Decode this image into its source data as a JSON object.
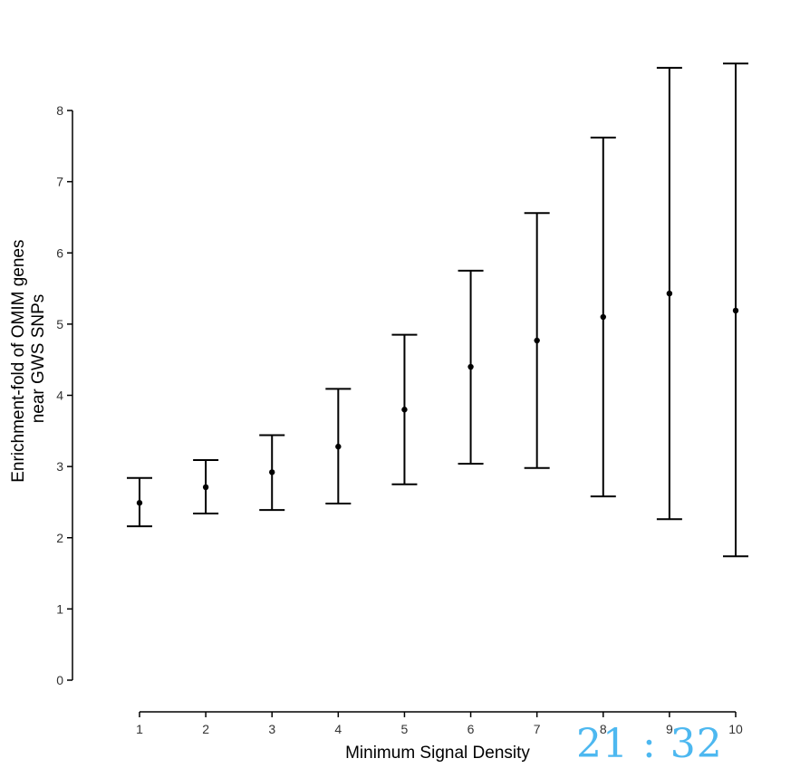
{
  "chart_data": {
    "type": "scatter",
    "title": "",
    "xlabel": "Minimum Signal Density",
    "ylabel_lines": [
      "Enrichment-fold of OMIM genes",
      "near GWS SNPs"
    ],
    "x": [
      1,
      2,
      3,
      4,
      5,
      6,
      7,
      8,
      9,
      10
    ],
    "series": [
      {
        "values": [
          2.49,
          2.71,
          2.92,
          3.28,
          3.8,
          4.4,
          4.77,
          5.1,
          5.43,
          5.19
        ],
        "lower": [
          2.16,
          2.34,
          2.39,
          2.48,
          2.75,
          3.04,
          2.98,
          2.58,
          2.26,
          1.74
        ],
        "upper": [
          2.84,
          3.09,
          3.44,
          4.09,
          4.85,
          5.75,
          6.56,
          7.62,
          8.6,
          8.66
        ]
      }
    ],
    "xlim": [
      1,
      10
    ],
    "ylim": [
      0,
      8
    ],
    "xticks": [
      "1",
      "2",
      "3",
      "4",
      "5",
      "6",
      "7",
      "8",
      "9",
      "10"
    ],
    "yticks": [
      "0",
      "1",
      "2",
      "3",
      "4",
      "5",
      "6",
      "7",
      "8"
    ],
    "grid": false,
    "colors": {
      "marks": "#000000",
      "ticks": "#333333"
    }
  },
  "overlay": {
    "clock_text": "21 : 32",
    "color": "#4db8f0"
  }
}
